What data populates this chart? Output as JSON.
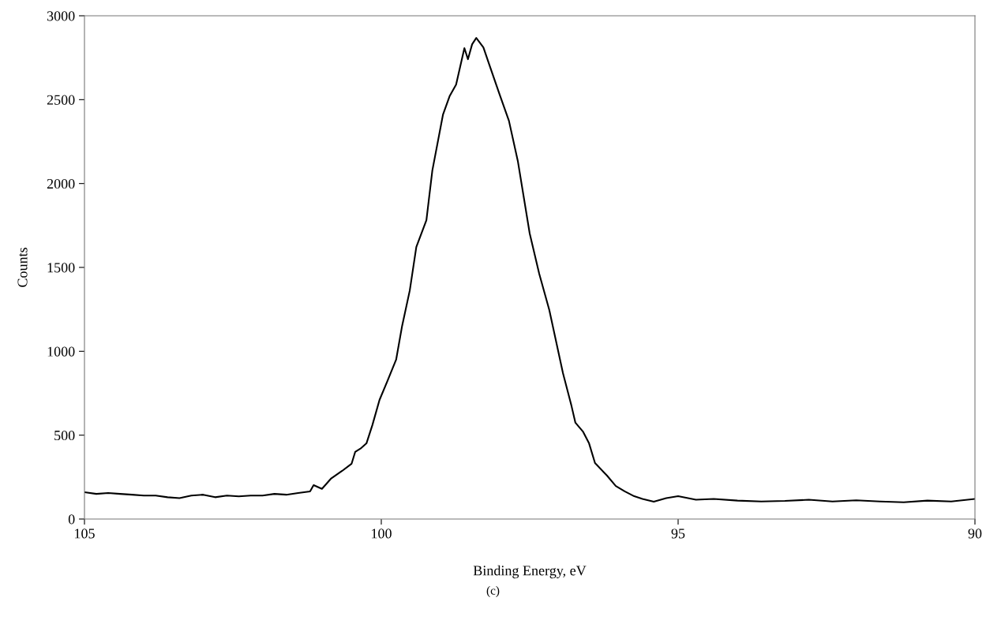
{
  "chart_data": {
    "type": "line",
    "xlabel": "Binding Energy, eV",
    "ylabel": "Counts",
    "annotations": [
      "(c)"
    ],
    "x": [
      105.0,
      104.8,
      104.6,
      104.4,
      104.2,
      104.0,
      103.8,
      103.6,
      103.4,
      103.2,
      103.0,
      102.8,
      102.6,
      102.4,
      102.2,
      102.0,
      101.8,
      101.6,
      101.4,
      101.3,
      101.2,
      101.14,
      101.0,
      100.85,
      100.66,
      100.5,
      100.44,
      100.35,
      100.25,
      100.15,
      100.03,
      99.9,
      99.75,
      99.65,
      99.52,
      99.41,
      99.24,
      99.14,
      98.96,
      98.85,
      98.74,
      98.6,
      98.54,
      98.47,
      98.4,
      98.28,
      98.18,
      98.01,
      97.85,
      97.7,
      97.5,
      97.34,
      97.17,
      96.94,
      96.8,
      96.73,
      96.6,
      96.5,
      96.4,
      96.2,
      96.05,
      95.9,
      95.74,
      95.6,
      95.41,
      95.2,
      95.0,
      94.7,
      94.4,
      94.0,
      93.6,
      93.2,
      92.8,
      92.4,
      92.0,
      91.6,
      91.2,
      90.8,
      90.4,
      90.0
    ],
    "values": [
      160,
      150,
      155,
      150,
      145,
      140,
      140,
      130,
      125,
      140,
      145,
      130,
      140,
      135,
      140,
      140,
      150,
      145,
      155,
      160,
      165,
      202,
      180,
      240,
      287,
      330,
      400,
      420,
      451,
      560,
      710,
      820,
      950,
      1150,
      1363,
      1622,
      1782,
      2078,
      2412,
      2520,
      2590,
      2807,
      2741,
      2830,
      2868,
      2811,
      2708,
      2534,
      2374,
      2134,
      1702,
      1462,
      1246,
      870,
      680,
      574,
      520,
      451,
      334,
      260,
      197,
      165,
      136,
      120,
      103,
      125,
      136,
      115,
      120,
      110,
      105,
      108,
      115,
      105,
      112,
      105,
      100,
      110,
      105,
      120
    ],
    "color": "#000000",
    "xlim": [
      105,
      90
    ],
    "ylim": [
      0,
      3000
    ],
    "xticks": [
      105,
      100,
      95,
      90
    ],
    "yticks": [
      0,
      500,
      1000,
      1500,
      2000,
      2500,
      3000
    ],
    "grid": false,
    "legend": false,
    "marker": "none",
    "line_style": "solid"
  }
}
